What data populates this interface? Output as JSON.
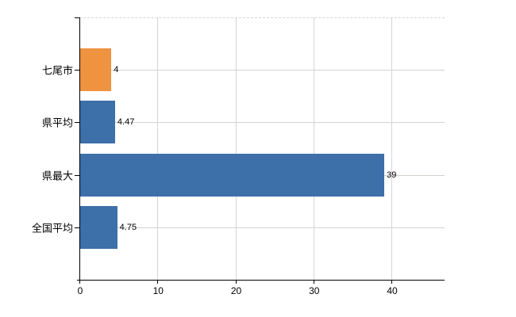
{
  "chart_data": {
    "type": "bar",
    "orientation": "horizontal",
    "categories": [
      "七尾市",
      "県平均",
      "県最大",
      "全国平均"
    ],
    "values": [
      4,
      4.47,
      39,
      4.75
    ],
    "value_labels": [
      "4",
      "4.47",
      "39",
      "4.75"
    ],
    "bar_colors": [
      "#ef9340",
      "#3d6fa9",
      "#3d6fa9",
      "#3d6fa9"
    ],
    "x_ticks": [
      0,
      10,
      20,
      30,
      40
    ],
    "x_tick_labels": [
      "0",
      "10",
      "20",
      "30",
      "40"
    ],
    "xlim": [
      0,
      46.8
    ],
    "title": "",
    "xlabel": "",
    "ylabel": "",
    "grid": true,
    "legend": false,
    "layout_colors": {
      "axis": "#000000",
      "h_gridline": "#cdd7cc",
      "v_gridline": "#d6d3db",
      "top_border": "#d6d3db",
      "background": "#ffffff",
      "bar_blue": "#3d6fa9",
      "bar_orange": "#ef9340"
    }
  }
}
